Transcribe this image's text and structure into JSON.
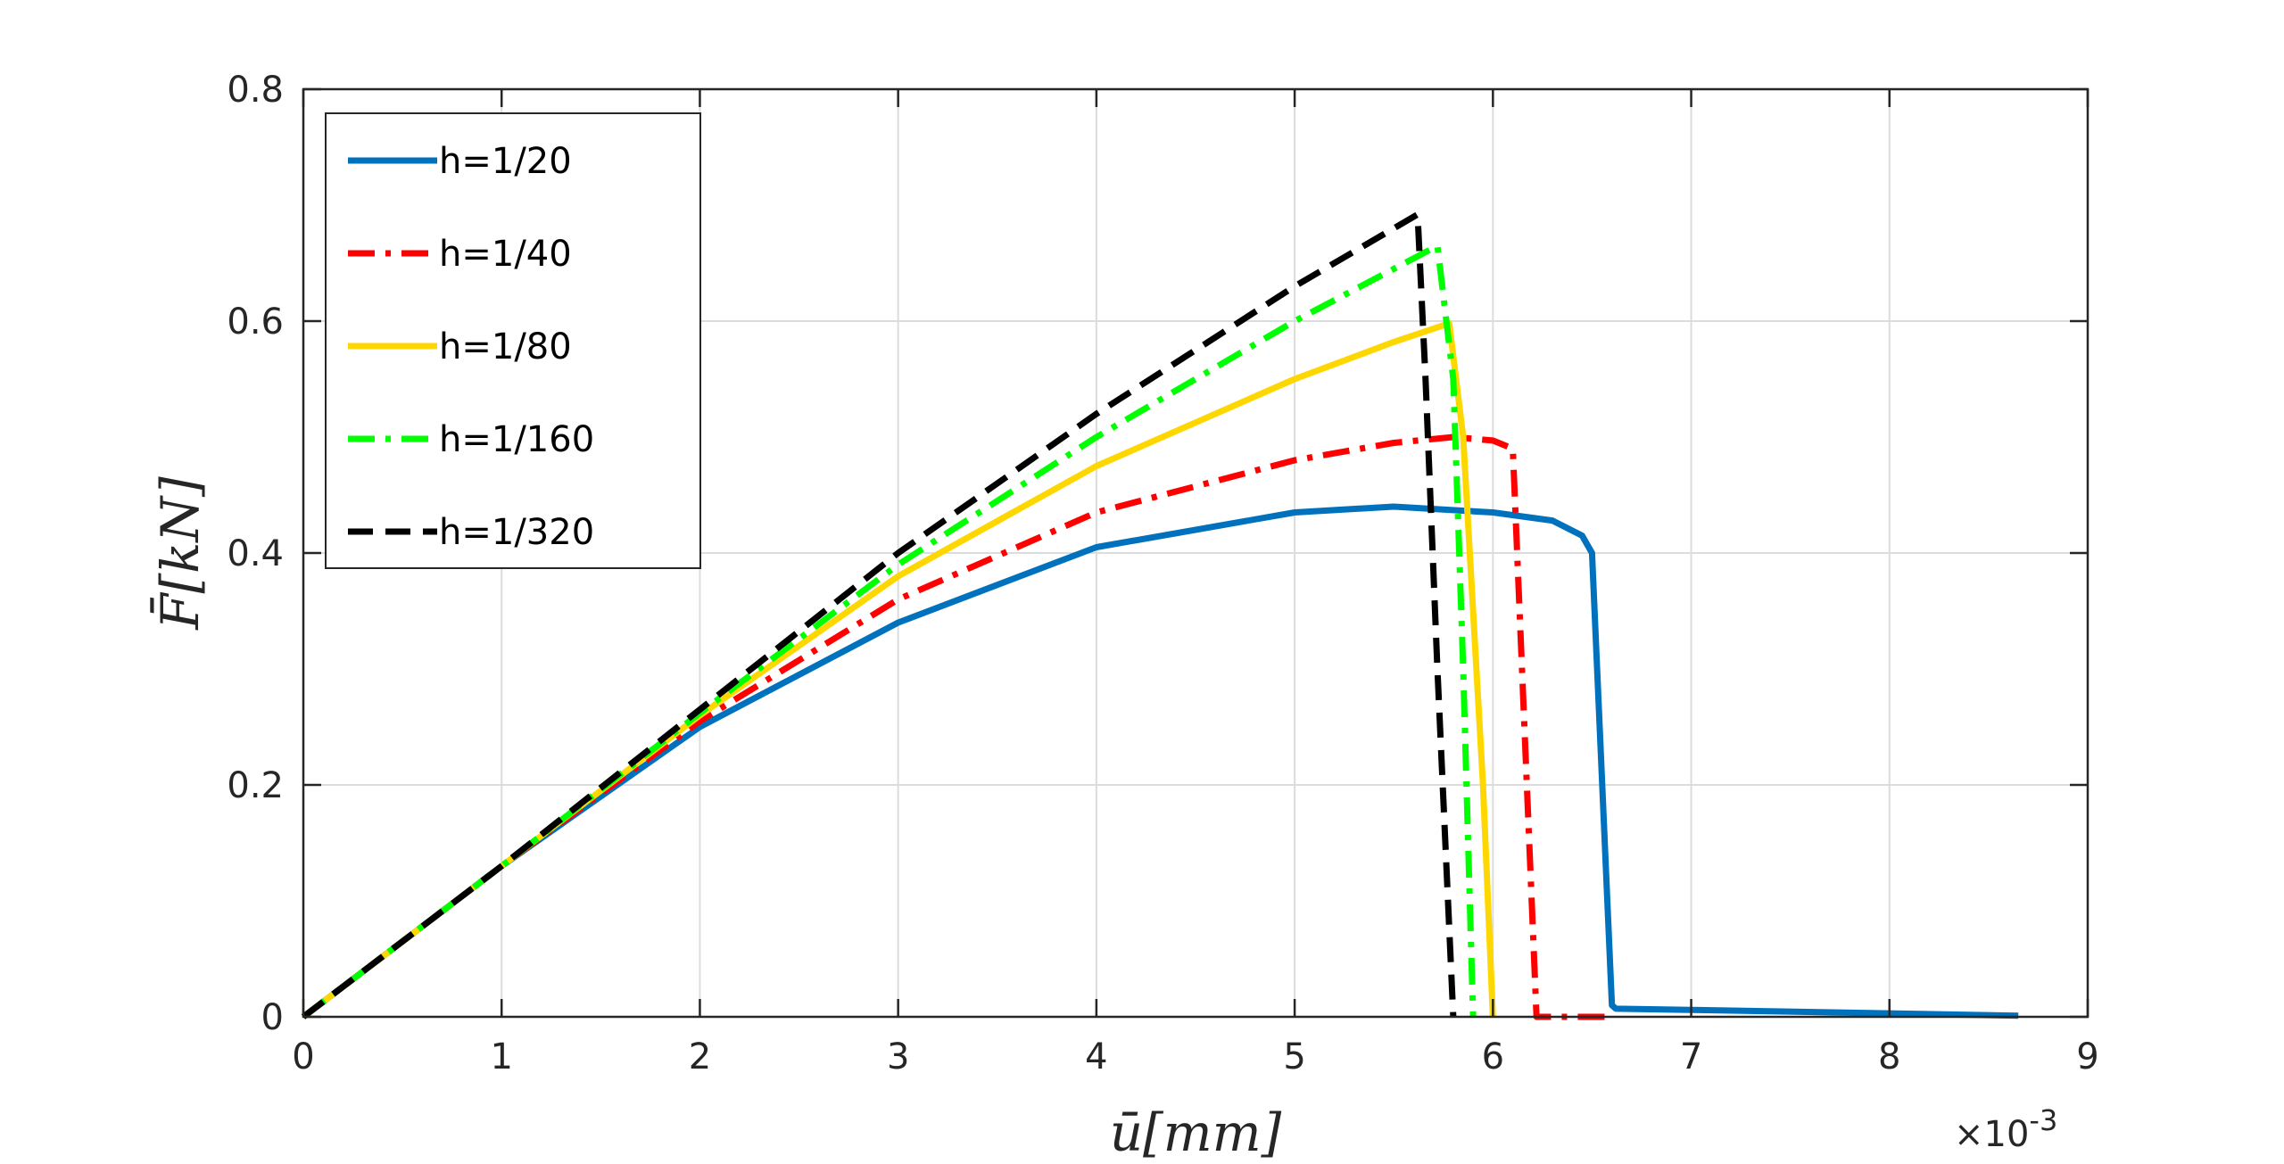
{
  "chart_data": {
    "type": "line",
    "xlabel": "ū[mm]",
    "ylabel": "F̄[kN]",
    "x_exponent_label": "×10",
    "x_exponent_power": "-3",
    "xlim": [
      0,
      9
    ],
    "ylim": [
      0,
      0.8
    ],
    "xticks": [
      0,
      1,
      2,
      3,
      4,
      5,
      6,
      7,
      8,
      9
    ],
    "xtick_labels": [
      "0",
      "1",
      "2",
      "3",
      "4",
      "5",
      "6",
      "7",
      "8",
      "9"
    ],
    "yticks": [
      0,
      0.2,
      0.4,
      0.6,
      0.8
    ],
    "ytick_labels": [
      "0",
      "0.2",
      "0.4",
      "0.6",
      "0.8"
    ],
    "grid": true,
    "legend_position": "top-left",
    "series": [
      {
        "name": "h=1/20",
        "color": "#0072BD",
        "dash": "solid",
        "x": [
          0,
          1,
          2,
          3,
          4,
          5,
          5.5,
          6,
          6.3,
          6.45,
          6.5,
          6.6,
          6.62,
          7,
          8,
          8.65
        ],
        "y": [
          0,
          0.13,
          0.25,
          0.34,
          0.405,
          0.435,
          0.44,
          0.435,
          0.428,
          0.415,
          0.4,
          0.01,
          0.007,
          0.006,
          0.003,
          0.001
        ]
      },
      {
        "name": "h=1/40",
        "color": "#FF0000",
        "dash": "dashdot",
        "x": [
          0,
          1,
          2,
          3,
          4,
          5,
          5.5,
          5.8,
          6.0,
          6.1,
          6.22,
          6.3,
          6.6
        ],
        "y": [
          0,
          0.13,
          0.255,
          0.36,
          0.435,
          0.48,
          0.495,
          0.5,
          0.497,
          0.49,
          0.0,
          0.0,
          0.0
        ]
      },
      {
        "name": "h=1/80",
        "color": "#FFD700",
        "dash": "solid",
        "x": [
          0,
          1,
          2,
          3,
          4,
          5,
          5.5,
          5.78,
          5.85,
          5.95,
          6.0
        ],
        "y": [
          0,
          0.13,
          0.26,
          0.38,
          0.475,
          0.55,
          0.582,
          0.598,
          0.5,
          0.2,
          0.0
        ]
      },
      {
        "name": "h=1/160",
        "color": "#00FF00",
        "dash": "dashdot",
        "x": [
          0,
          1,
          2,
          3,
          4,
          5,
          5.5,
          5.72,
          5.8,
          5.85,
          5.9
        ],
        "y": [
          0,
          0.13,
          0.262,
          0.39,
          0.5,
          0.6,
          0.645,
          0.665,
          0.55,
          0.3,
          0.0
        ]
      },
      {
        "name": "h=1/320",
        "color": "#000000",
        "dash": "dashed",
        "x": [
          0,
          1,
          2,
          3,
          4,
          5,
          5.5,
          5.62,
          5.66,
          5.72,
          5.8
        ],
        "y": [
          0,
          0.13,
          0.265,
          0.4,
          0.52,
          0.63,
          0.68,
          0.692,
          0.55,
          0.3,
          0.0
        ]
      }
    ]
  }
}
